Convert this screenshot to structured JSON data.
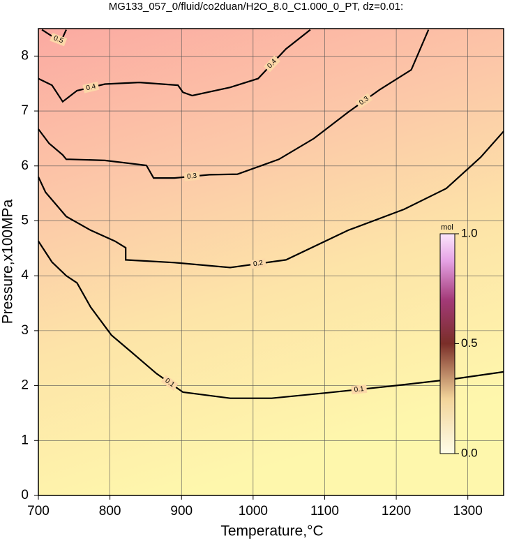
{
  "chart_data": {
    "type": "contour",
    "title": "MG133_057_0/fluid/co2duan/H2O_8.0_C1.000_0_PT, dz=0.01:",
    "xlabel": "Temperature,°C",
    "ylabel": "Pressure,x100MPa",
    "xlim": [
      700,
      1350
    ],
    "xticks": [
      700,
      800,
      900,
      1000,
      1100,
      1200,
      1300
    ],
    "ylim": [
      0,
      8.5
    ],
    "yticks": [
      0,
      1,
      2,
      3,
      4,
      5,
      6,
      7,
      8
    ],
    "grid": true,
    "color": "#000000",
    "series": [
      {
        "name": "0.1",
        "x": [
          700,
          719,
          739,
          754,
          773,
          802,
          831,
          865,
          902,
          968,
          1026,
          1104,
          1192,
          1280,
          1350
        ],
        "values": [
          4.63,
          4.25,
          4.0,
          3.87,
          3.43,
          2.92,
          2.6,
          2.22,
          1.88,
          1.77,
          1.77,
          1.87,
          1.99,
          2.12,
          2.25
        ]
      },
      {
        "name": "0.2",
        "x": [
          700,
          710,
          739,
          773,
          807,
          822,
          822,
          890,
          968,
          1046,
          1133,
          1211,
          1270,
          1318,
          1350
        ],
        "values": [
          5.8,
          5.52,
          5.08,
          4.83,
          4.63,
          4.51,
          4.29,
          4.24,
          4.15,
          4.29,
          4.83,
          5.21,
          5.59,
          6.16,
          6.63
        ]
      },
      {
        "name": "0.3",
        "x": [
          700,
          715,
          734,
          739,
          744,
          793,
          851,
          861,
          890,
          939,
          978,
          1036,
          1085,
          1133,
          1177,
          1221,
          1245
        ],
        "values": [
          6.67,
          6.41,
          6.2,
          6.12,
          6.12,
          6.1,
          6.01,
          5.78,
          5.78,
          5.84,
          5.85,
          6.12,
          6.5,
          6.98,
          7.39,
          7.75,
          8.48
        ]
      },
      {
        "name": "0.4",
        "x": [
          700,
          719,
          734,
          754,
          793,
          841,
          895,
          902,
          915,
          968,
          1007,
          1046,
          1080
        ],
        "values": [
          7.59,
          7.47,
          7.17,
          7.37,
          7.49,
          7.52,
          7.47,
          7.34,
          7.28,
          7.43,
          7.59,
          8.13,
          8.48
        ]
      },
      {
        "name": "0.5",
        "x": [
          705,
          724,
          732,
          739
        ],
        "values": [
          8.48,
          8.32,
          8.28,
          8.48
        ]
      }
    ],
    "colorbar": {
      "label": "mol",
      "clim": [
        0,
        1
      ],
      "ticks": [
        {
          "value": 0,
          "label": "0.0"
        },
        0.5,
        {
          "value": 1,
          "label": "1.0"
        }
      ]
    }
  }
}
